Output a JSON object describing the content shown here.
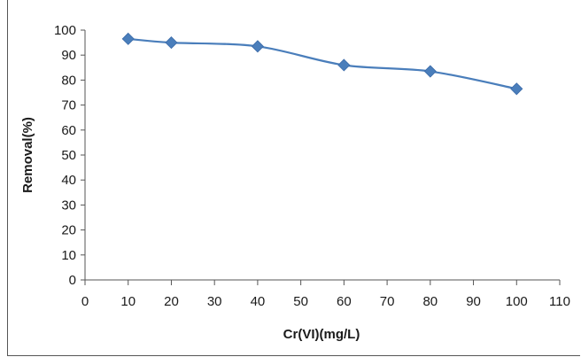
{
  "chart_data": {
    "type": "line",
    "xlabel": "Cr(VI)(mg/L)",
    "ylabel": "Removal(%)",
    "xlim": [
      0,
      110
    ],
    "ylim": [
      0,
      100
    ],
    "x_ticks": [
      0,
      10,
      20,
      30,
      40,
      50,
      60,
      70,
      80,
      90,
      100,
      110
    ],
    "y_ticks": [
      0,
      10,
      20,
      30,
      40,
      50,
      60,
      70,
      80,
      90,
      100
    ],
    "grid": false,
    "legend": "none",
    "series": [
      {
        "x": [
          10,
          20,
          40,
          60,
          80,
          100
        ],
        "y": [
          96.5,
          95,
          93.5,
          86,
          83.5,
          76.5
        ],
        "color": "#4a7ebb",
        "marker": "diamond",
        "smooth": true
      }
    ]
  }
}
